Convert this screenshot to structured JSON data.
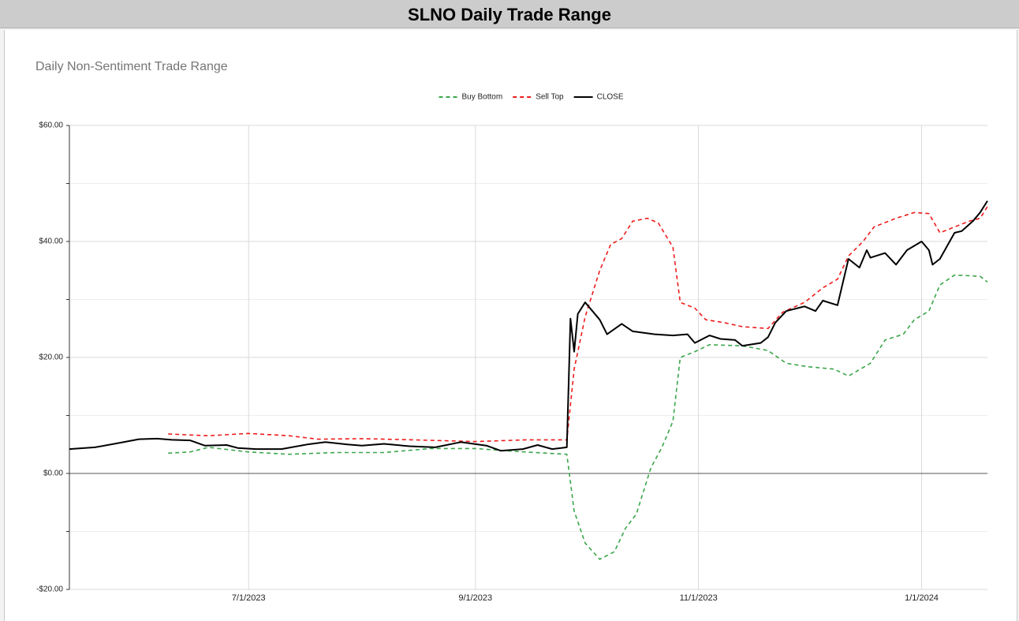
{
  "header": {
    "title": "SLNO Daily Trade Range"
  },
  "chart_data": {
    "type": "line",
    "title": "Daily Non-Sentiment Trade Range",
    "legend": "top",
    "grid": true,
    "xlim": [
      "2023-05-13",
      "2024-01-19"
    ],
    "xticks": [
      {
        "value": "2023-07-01",
        "label": "7/1/2023"
      },
      {
        "value": "2023-09-01",
        "label": "9/1/2023"
      },
      {
        "value": "2023-11-01",
        "label": "11/1/2023"
      },
      {
        "value": "2024-01-01",
        "label": "1/1/2024"
      }
    ],
    "ylim": [
      -20,
      60
    ],
    "yticks": [
      {
        "value": 60,
        "label": "$60.00"
      },
      {
        "value": 40,
        "label": "$40.00"
      },
      {
        "value": 20,
        "label": "$20.00"
      },
      {
        "value": 0,
        "label": "$0.00"
      },
      {
        "value": -20,
        "label": "-$20.00"
      }
    ],
    "minor_yticks": [
      50,
      30,
      10,
      -10
    ],
    "series": [
      {
        "name": "Buy Bottom",
        "color": "#3aa64a",
        "dashed": true,
        "x": [
          "2023-06-09",
          "2023-06-15",
          "2023-06-20",
          "2023-07-01",
          "2023-07-12",
          "2023-07-25",
          "2023-08-07",
          "2023-08-20",
          "2023-09-01",
          "2023-09-12",
          "2023-09-26",
          "2023-09-28",
          "2023-10-01",
          "2023-10-05",
          "2023-10-09",
          "2023-10-12",
          "2023-10-15",
          "2023-10-19",
          "2023-10-22",
          "2023-10-25",
          "2023-10-27",
          "2023-10-31",
          "2023-11-04",
          "2023-11-13",
          "2023-11-20",
          "2023-11-25",
          "2023-12-01",
          "2023-12-08",
          "2023-12-12",
          "2023-12-18",
          "2023-12-22",
          "2023-12-27",
          "2023-12-30",
          "2024-01-03",
          "2024-01-06",
          "2024-01-10",
          "2024-01-17",
          "2024-01-19"
        ],
        "values": [
          3.5,
          3.7,
          4.5,
          3.7,
          3.3,
          3.6,
          3.6,
          4.3,
          4.3,
          3.8,
          3.3,
          -6.5,
          -12,
          -14.8,
          -13.5,
          -9.5,
          -7,
          1,
          4.5,
          9,
          20,
          21,
          22.2,
          22,
          21.2,
          19,
          18.4,
          18,
          16.8,
          19,
          23,
          24,
          26.5,
          28,
          32.5,
          34.2,
          34,
          33
        ]
      },
      {
        "name": "Sell Top",
        "color": "#ee1c1c",
        "dashed": true,
        "x": [
          "2023-06-09",
          "2023-06-20",
          "2023-07-01",
          "2023-07-12",
          "2023-07-20",
          "2023-08-01",
          "2023-08-15",
          "2023-09-01",
          "2023-09-15",
          "2023-09-26",
          "2023-09-28",
          "2023-10-01",
          "2023-10-05",
          "2023-10-08",
          "2023-10-11",
          "2023-10-14",
          "2023-10-18",
          "2023-10-21",
          "2023-10-25",
          "2023-10-27",
          "2023-10-31",
          "2023-11-03",
          "2023-11-08",
          "2023-11-13",
          "2023-11-20",
          "2023-11-24",
          "2023-11-30",
          "2023-12-05",
          "2023-12-09",
          "2023-12-12",
          "2023-12-16",
          "2023-12-19",
          "2023-12-25",
          "2023-12-30",
          "2024-01-03",
          "2024-01-06",
          "2024-01-10",
          "2024-01-14",
          "2024-01-17",
          "2024-01-19"
        ],
        "values": [
          6.8,
          6.5,
          6.9,
          6.5,
          5.9,
          6,
          5.8,
          5.5,
          5.8,
          5.8,
          18,
          27,
          35,
          39.5,
          40.5,
          43.5,
          44,
          43.2,
          39,
          29.5,
          28.5,
          26.5,
          26,
          25.3,
          25,
          27.8,
          29.5,
          32,
          33.5,
          37.5,
          40,
          42.5,
          44,
          45,
          44.8,
          41.5,
          42.5,
          43.5,
          44,
          46
        ]
      },
      {
        "name": "CLOSE",
        "color": "#000000",
        "dashed": false,
        "x": [
          "2023-05-13",
          "2023-05-20",
          "2023-05-27",
          "2023-06-01",
          "2023-06-06",
          "2023-06-10",
          "2023-06-15",
          "2023-06-19",
          "2023-06-25",
          "2023-06-28",
          "2023-07-03",
          "2023-07-10",
          "2023-07-17",
          "2023-07-22",
          "2023-07-28",
          "2023-08-01",
          "2023-08-07",
          "2023-08-14",
          "2023-08-21",
          "2023-08-28",
          "2023-09-04",
          "2023-09-08",
          "2023-09-14",
          "2023-09-18",
          "2023-09-22",
          "2023-09-26",
          "2023-09-27",
          "2023-09-28",
          "2023-09-29",
          "2023-10-01",
          "2023-10-05",
          "2023-10-07",
          "2023-10-11",
          "2023-10-14",
          "2023-10-20",
          "2023-10-25",
          "2023-10-29",
          "2023-10-31",
          "2023-11-04",
          "2023-11-07",
          "2023-11-11",
          "2023-11-13",
          "2023-11-18",
          "2023-11-20",
          "2023-11-22",
          "2023-11-25",
          "2023-11-30",
          "2023-12-03",
          "2023-12-05",
          "2023-12-09",
          "2023-12-12",
          "2023-12-15",
          "2023-12-17",
          "2023-12-18",
          "2023-12-22",
          "2023-12-25",
          "2023-12-28",
          "2024-01-01",
          "2024-01-03",
          "2024-01-04",
          "2024-01-06",
          "2024-01-10",
          "2024-01-12",
          "2024-01-15",
          "2024-01-17",
          "2024-01-19"
        ],
        "values": [
          4.2,
          4.5,
          5.3,
          5.9,
          6,
          5.8,
          5.7,
          4.8,
          4.9,
          4.4,
          4.2,
          4.2,
          5,
          5.4,
          5,
          4.8,
          5.1,
          4.7,
          4.5,
          5.4,
          4.8,
          3.9,
          4.2,
          4.9,
          4.2,
          4.5,
          26.7,
          21,
          27.5,
          29.5,
          26.5,
          24,
          25.8,
          24.5,
          24,
          23.8,
          24,
          22.5,
          23.8,
          23.2,
          23,
          22,
          22.5,
          23.5,
          26,
          28,
          28.8,
          28,
          29.8,
          29,
          37,
          35.5,
          38.5,
          37.2,
          38,
          36,
          38.5,
          40,
          38.5,
          36,
          37,
          41.5,
          41.8,
          43.5,
          45,
          47
        ]
      }
    ]
  }
}
